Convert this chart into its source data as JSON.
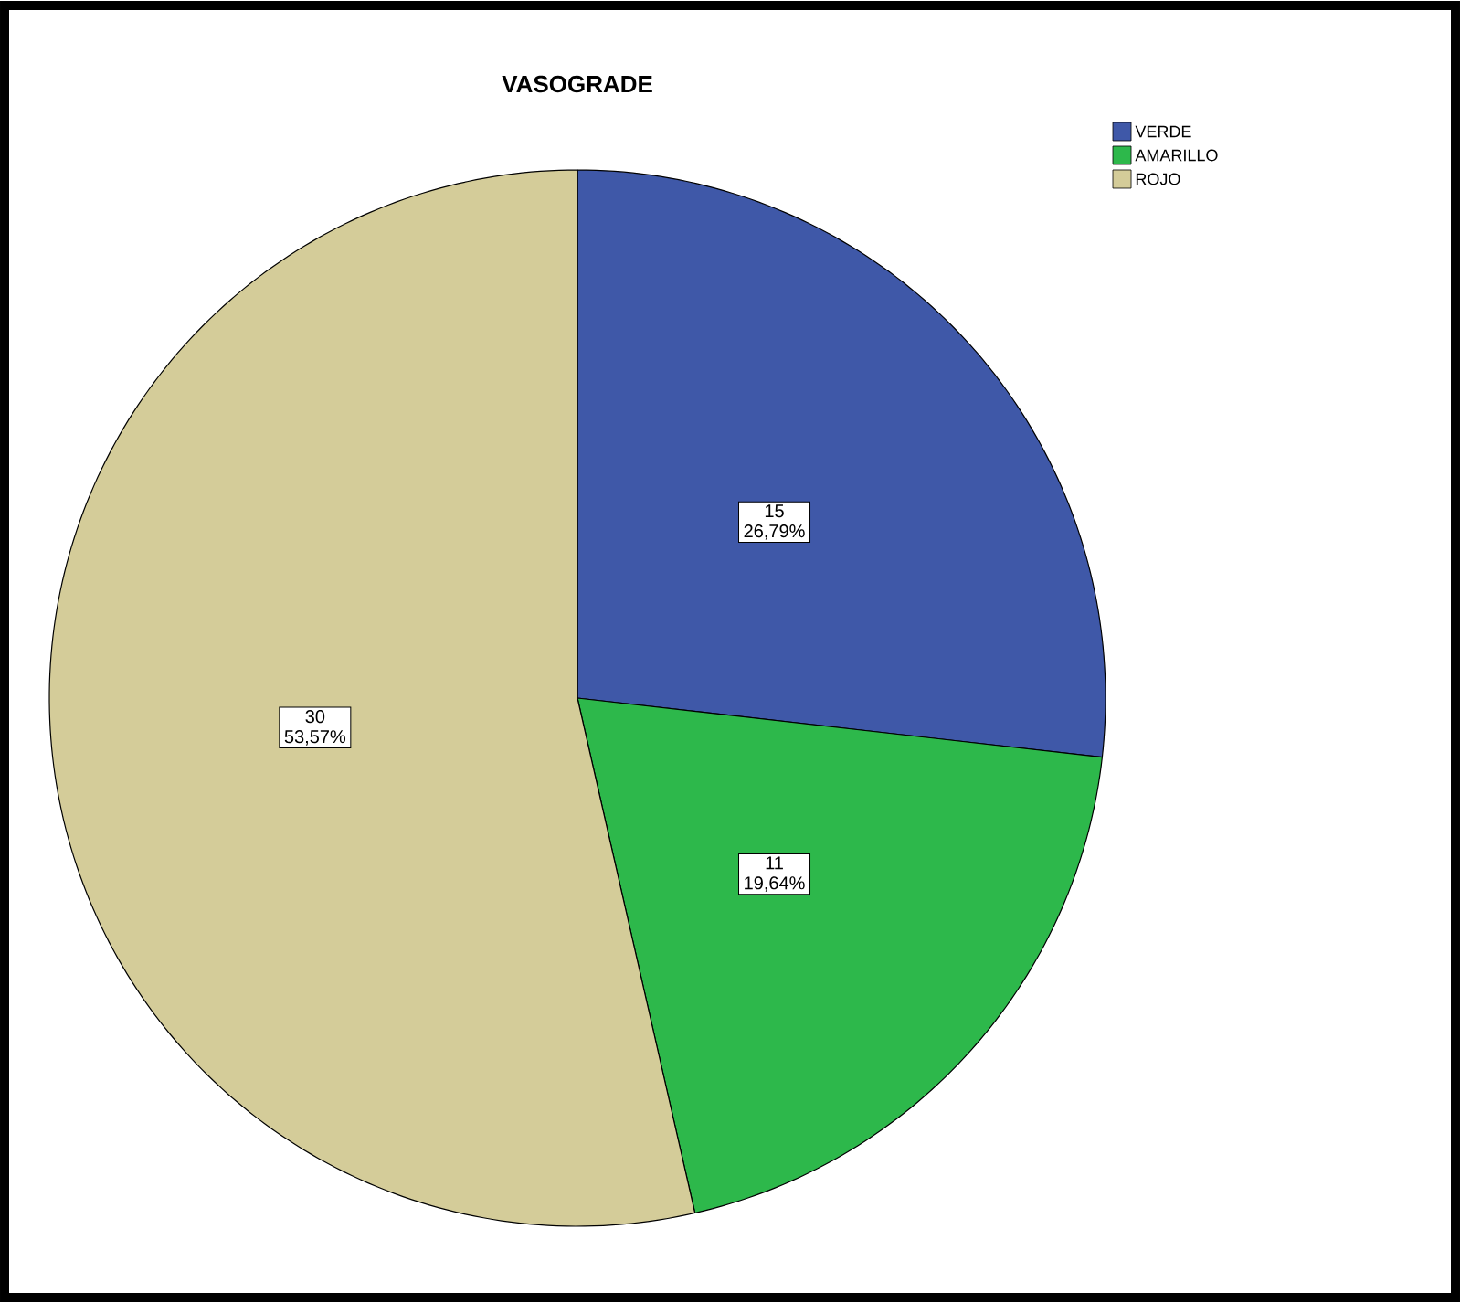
{
  "chart_data": {
    "type": "pie",
    "title": "VASOGRADE",
    "categories": [
      "VERDE",
      "AMARILLO",
      "ROJO"
    ],
    "values": [
      15,
      11,
      30
    ],
    "colors": [
      "#3f58a8",
      "#2db84b",
      "#d4cc99"
    ],
    "value_labels": [
      "15 26,79%",
      "11 19,64%",
      "30 53,57%"
    ],
    "legend": "top right"
  }
}
